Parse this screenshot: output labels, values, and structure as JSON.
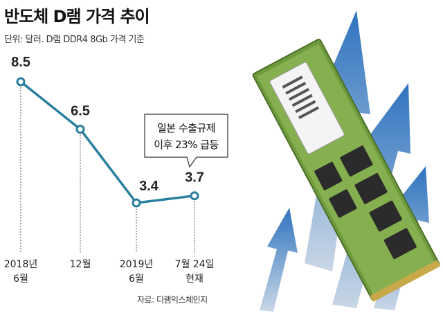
{
  "chart_data": {
    "type": "line",
    "title": "반도체 D램 가격 추이",
    "subtitle": "단위: 달러. D램 DDR4 8Gb 가격 기준",
    "categories": [
      [
        "2018년",
        "6월"
      ],
      [
        "12월"
      ],
      [
        "2019년",
        "6월"
      ],
      [
        "7월 24일",
        "현재"
      ]
    ],
    "values": [
      8.5,
      6.5,
      3.4,
      3.7
    ],
    "value_labels": [
      "8.5",
      "6.5",
      "3.4",
      "3.7"
    ],
    "annotation": [
      "일본 수출규제",
      "이후 23% 급등"
    ],
    "source": "자료: 디램익스체인지",
    "grid": false,
    "colors": {
      "line": "#2a7f9e",
      "marker_fill": "#ffffff",
      "dashed": "#555555",
      "arrow": "#3a7fc4",
      "pcb": "#6f9b3e",
      "chip": "#2b2b2b"
    }
  }
}
